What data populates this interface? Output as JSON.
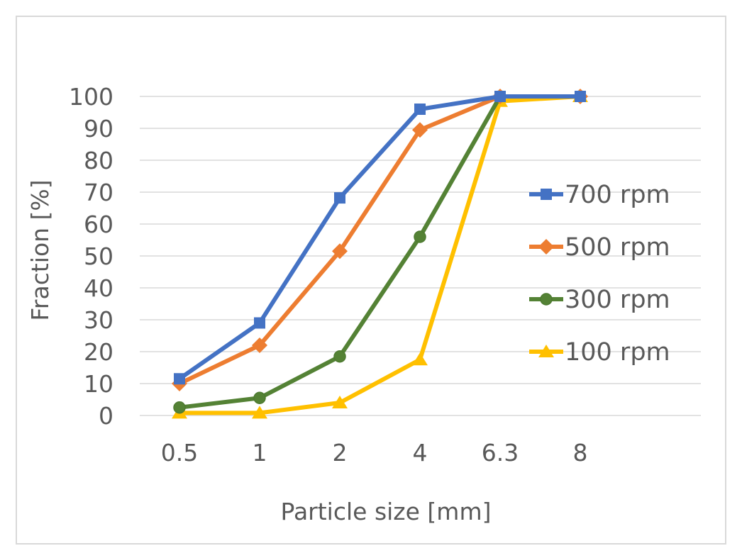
{
  "chart_data": {
    "type": "line",
    "title": "",
    "xlabel": "Particle size [mm]",
    "ylabel": "Fraction [%]",
    "categories": [
      "0.5",
      "1",
      "2",
      "4",
      "6.3",
      "8"
    ],
    "yticks": [
      "0",
      "10",
      "20",
      "30",
      "40",
      "50",
      "60",
      "70",
      "80",
      "90",
      "100"
    ],
    "ylim": [
      0,
      100
    ],
    "grid": "horizontal",
    "legend_position": "right",
    "series": [
      {
        "name": "700 rpm",
        "values": [
          11.5,
          29,
          68.2,
          96,
          100,
          100
        ],
        "color": "#4472C4",
        "marker": "square"
      },
      {
        "name": "500 rpm",
        "values": [
          10,
          22,
          51.5,
          89.5,
          100,
          100
        ],
        "color": "#ED7D31",
        "marker": "diamond"
      },
      {
        "name": "300 rpm",
        "values": [
          2.5,
          5.5,
          18.5,
          56,
          100,
          100
        ],
        "color": "#548235",
        "marker": "circle"
      },
      {
        "name": "100 rpm",
        "values": [
          0.8,
          0.8,
          4,
          17.5,
          98.5,
          100
        ],
        "color": "#FFC000",
        "marker": "triangle"
      }
    ]
  }
}
